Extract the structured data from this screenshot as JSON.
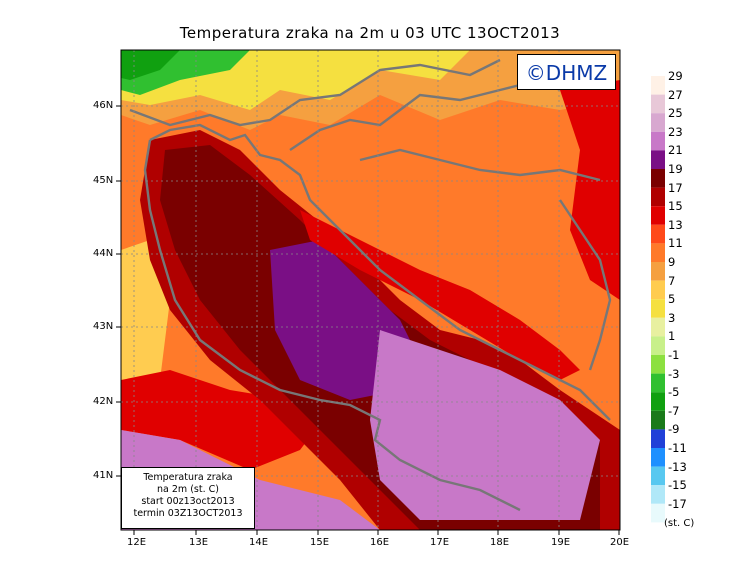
{
  "title": "Temperatura zraka na 2m u 03 UTC 13OCT2013",
  "logo": "©DHMZ",
  "info": {
    "line1": "Temperatura zraka",
    "line2": "na 2m (st. C)",
    "line3": "start 00z13oct2013",
    "line4": "termin 03Z13OCT2013"
  },
  "units": "(st. C)",
  "x_ticks": [
    "12E",
    "13E",
    "14E",
    "15E",
    "16E",
    "17E",
    "18E",
    "19E",
    "20E"
  ],
  "y_ticks": [
    "46N",
    "45N",
    "44N",
    "43N",
    "42N",
    "41N"
  ],
  "colorbar": {
    "labels": [
      "29",
      "27",
      "25",
      "23",
      "21",
      "19",
      "17",
      "15",
      "13",
      "11",
      "9",
      "7",
      "5",
      "3",
      "1",
      "-1",
      "-3",
      "-5",
      "-7",
      "-9",
      "-11",
      "-13",
      "-15",
      "-17"
    ],
    "colors": [
      "#fff1e6",
      "#e8c8d8",
      "#d8a8d0",
      "#c878c8",
      "#7a0f85",
      "#7a0000",
      "#b00000",
      "#e00000",
      "#ff4a1a",
      "#ff7a2a",
      "#f5a040",
      "#ffcc50",
      "#f5e040",
      "#e8f0a0",
      "#c8f08a",
      "#8ce040",
      "#30c030",
      "#10a010",
      "#1a7a1a",
      "#2040d8",
      "#1e90ff",
      "#58c8f0",
      "#b0e8f8",
      "#e8fafc"
    ]
  }
}
